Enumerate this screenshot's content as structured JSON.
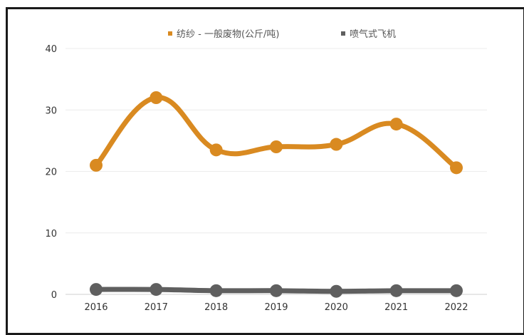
{
  "chart_data": {
    "type": "line",
    "title": "",
    "xlabel": "",
    "ylabel": "",
    "x": [
      "2016",
      "2017",
      "2018",
      "2019",
      "2020",
      "2021",
      "2022"
    ],
    "ylim": [
      0,
      40
    ],
    "yticks": [
      0,
      10,
      20,
      30,
      40
    ],
    "grid": true,
    "legend_position": "top",
    "smooth": true,
    "series": [
      {
        "name": "纺纱 - 一般废物(公斤/吨)",
        "color": "#d98a21",
        "values": [
          21.0,
          32.0,
          23.5,
          24.0,
          24.4,
          27.7,
          20.6
        ]
      },
      {
        "name": "喷气式飞机",
        "color": "#5f5f5f",
        "values": [
          0.8,
          0.8,
          0.6,
          0.6,
          0.5,
          0.6,
          0.6
        ]
      }
    ]
  }
}
